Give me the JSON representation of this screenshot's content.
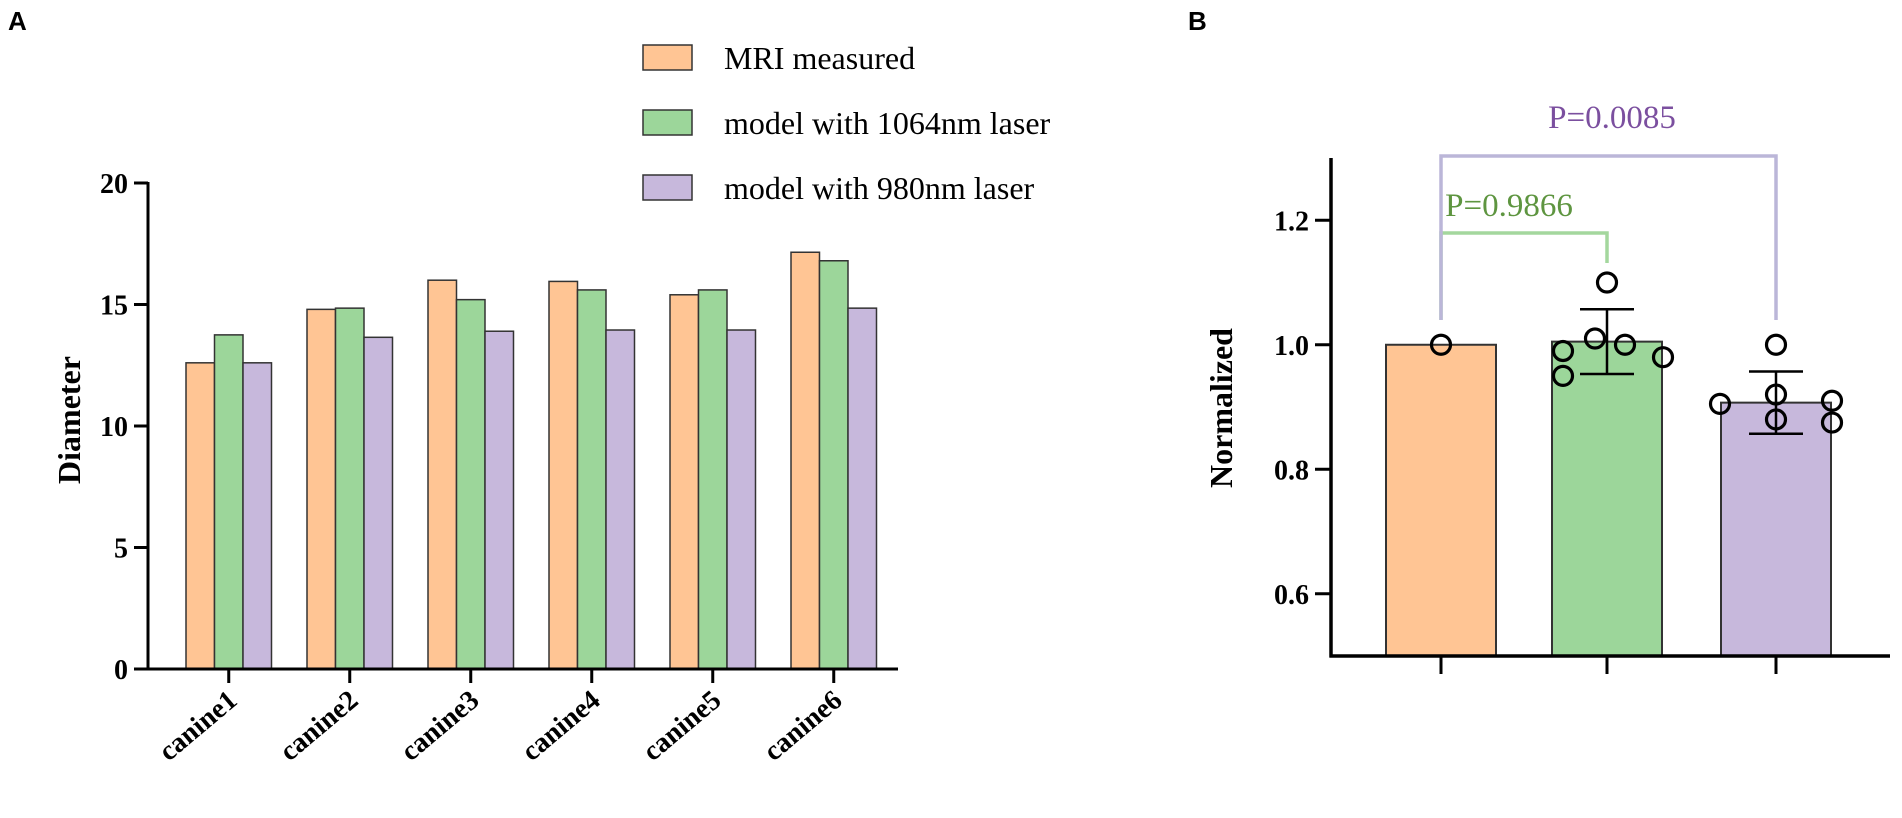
{
  "chart_data": [
    {
      "panel": "A",
      "type": "bar",
      "ylabel": "Diameter",
      "xlabel": "",
      "ylim": [
        0,
        20
      ],
      "yticks": [
        "0",
        "5",
        "10",
        "15",
        "20"
      ],
      "categories": [
        "canine1",
        "canine2",
        "canine3",
        "canine4",
        "canine5",
        "canine6"
      ],
      "series": [
        {
          "name": "MRI measured",
          "color": "#FFC594",
          "values": [
            12.6,
            14.8,
            16.0,
            15.95,
            15.4,
            17.15
          ]
        },
        {
          "name": "model with 1064nm laser",
          "color": "#9CD69A",
          "values": [
            13.75,
            14.85,
            15.2,
            15.6,
            15.6,
            16.8
          ]
        },
        {
          "name": "model with 980nm laser",
          "color": "#C7B8DC",
          "values": [
            12.6,
            13.65,
            13.9,
            13.95,
            13.95,
            14.85
          ]
        }
      ]
    },
    {
      "panel": "B",
      "type": "bar",
      "ylabel": "Normalized",
      "xlabel": "",
      "ylim": [
        0.5,
        1.3
      ],
      "yticks": [
        "0.6",
        "0.8",
        "1.0",
        "1.2"
      ],
      "groups": [
        {
          "name": "MRI measured",
          "color": "#FFC594",
          "mean": 1.0,
          "sd": 0,
          "points": [
            1.0
          ]
        },
        {
          "name": "model with 1064nm laser",
          "color": "#9CD69A",
          "mean": 1.005,
          "sd": 0.052,
          "points": [
            1.1,
            1.01,
            1.0,
            0.99,
            0.98,
            0.95
          ]
        },
        {
          "name": "model with 980nm laser",
          "color": "#C7B8DC",
          "mean": 0.907,
          "sd": 0.05,
          "points": [
            1.0,
            0.92,
            0.91,
            0.905,
            0.88,
            0.875
          ]
        }
      ],
      "annotations": [
        {
          "text": "P=0.9866",
          "from": 0,
          "to": 1,
          "color": "#5E9540",
          "line_color": "#A4D79D"
        },
        {
          "text": "P=0.0085",
          "from": 0,
          "to": 2,
          "color": "#7B4F9F",
          "line_color": "#BBB6D8"
        }
      ]
    }
  ],
  "panel_labels": {
    "a": "A",
    "b": "B"
  }
}
